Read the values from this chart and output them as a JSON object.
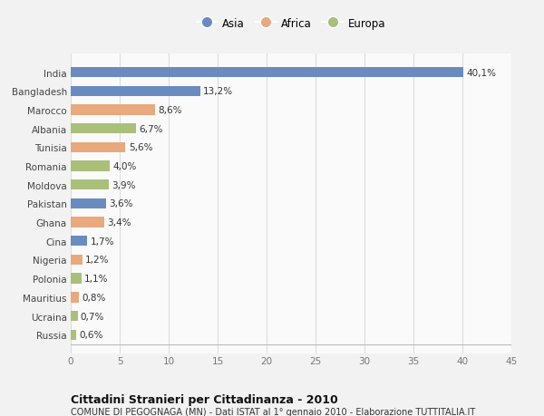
{
  "categories": [
    "India",
    "Bangladesh",
    "Marocco",
    "Albania",
    "Tunisia",
    "Romania",
    "Moldova",
    "Pakistan",
    "Ghana",
    "Cina",
    "Nigeria",
    "Polonia",
    "Mauritius",
    "Ucraina",
    "Russia"
  ],
  "values": [
    40.1,
    13.2,
    8.6,
    6.7,
    5.6,
    4.0,
    3.9,
    3.6,
    3.4,
    1.7,
    1.2,
    1.1,
    0.8,
    0.7,
    0.6
  ],
  "labels": [
    "40,1%",
    "13,2%",
    "8,6%",
    "6,7%",
    "5,6%",
    "4,0%",
    "3,9%",
    "3,6%",
    "3,4%",
    "1,7%",
    "1,2%",
    "1,1%",
    "0,8%",
    "0,7%",
    "0,6%"
  ],
  "colors": [
    "#6A8BBF",
    "#6A8BBF",
    "#E8A97E",
    "#AABF7A",
    "#E8A97E",
    "#AABF7A",
    "#AABF7A",
    "#6A8BBF",
    "#E8A97E",
    "#6A8BBF",
    "#E8A97E",
    "#AABF7A",
    "#E8A97E",
    "#AABF7A",
    "#AABF7A"
  ],
  "legend_labels": [
    "Asia",
    "Africa",
    "Europa"
  ],
  "legend_colors": [
    "#6A8BBF",
    "#E8A97E",
    "#AABF7A"
  ],
  "xlim": [
    0,
    45
  ],
  "xticks": [
    0,
    5,
    10,
    15,
    20,
    25,
    30,
    35,
    40,
    45
  ],
  "title": "Cittadini Stranieri per Cittadinanza - 2010",
  "subtitle": "COMUNE DI PEGOGNAGA (MN) - Dati ISTAT al 1° gennaio 2010 - Elaborazione TUTTITALIA.IT",
  "bg_color": "#F2F2F2",
  "bar_bg_color": "#FAFAFA",
  "grid_color": "#DDDDDD",
  "bar_height": 0.55,
  "label_fontsize": 7.5,
  "ytick_fontsize": 7.5,
  "xtick_fontsize": 7.5,
  "legend_fontsize": 8.5,
  "title_fontsize": 9,
  "subtitle_fontsize": 7
}
